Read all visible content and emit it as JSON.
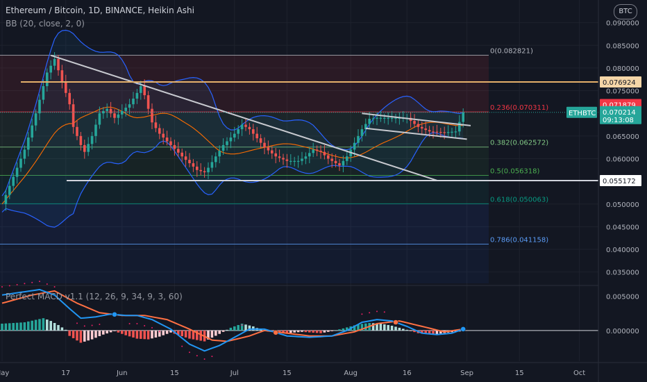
{
  "header": {
    "title": "Ethereum / Bitcoin, 1D, BINANCE, Heikin Ashi",
    "indicator": "BB (20, close, 2, 0)",
    "macd_label": "Perfect MACD v1.1 (12, 26, 9, 34, 9, 3, 60)",
    "currency_button": "BTC"
  },
  "colors": {
    "background": "#131722",
    "up": "#26a69a",
    "down": "#ef5350",
    "bb_band": "#2962ff",
    "bb_basis": "#ff6d00",
    "trendline": "#c8cad0",
    "horizontal_orange": "#e5b06b",
    "macd_line": "#2196f3",
    "signal_line": "#ff7043"
  },
  "chart_data": {
    "type": "candlestick",
    "symbol": "ETHBTC",
    "y_ticks": [
      0.09,
      0.085,
      0.08,
      0.075,
      0.065,
      0.06,
      0.05,
      0.045,
      0.04,
      0.035
    ],
    "y_tick_labels": [
      "0.090000",
      "0.085000",
      "0.080000",
      "0.075000",
      "0.065000",
      "0.060000",
      "0.050000",
      "0.045000",
      "0.040000",
      "0.035000"
    ],
    "ylim": [
      0.0325,
      0.095
    ],
    "x_labels": [
      {
        "label": "May",
        "day": 0
      },
      {
        "label": "17",
        "day": 17
      },
      {
        "label": "Jun",
        "day": 32
      },
      {
        "label": "15",
        "day": 46
      },
      {
        "label": "Jul",
        "day": 62
      },
      {
        "label": "15",
        "day": 76
      },
      {
        "label": "Aug",
        "day": 93
      },
      {
        "label": "16",
        "day": 108
      },
      {
        "label": "Sep",
        "day": 124
      },
      {
        "label": "15",
        "day": 138
      },
      {
        "label": "Oct",
        "day": 154
      }
    ],
    "close_anchors": [
      [
        0,
        0.05
      ],
      [
        3,
        0.056
      ],
      [
        6,
        0.062
      ],
      [
        9,
        0.07
      ],
      [
        12,
        0.079
      ],
      [
        14,
        0.082
      ],
      [
        15,
        0.0795
      ],
      [
        16,
        0.077
      ],
      [
        18,
        0.072
      ],
      [
        19,
        0.067
      ],
      [
        21,
        0.063
      ],
      [
        22,
        0.0615
      ],
      [
        24,
        0.065
      ],
      [
        26,
        0.07
      ],
      [
        28,
        0.071
      ],
      [
        30,
        0.069
      ],
      [
        32,
        0.0705
      ],
      [
        34,
        0.072
      ],
      [
        36,
        0.0745
      ],
      [
        37,
        0.076
      ],
      [
        38,
        0.074
      ],
      [
        39,
        0.071
      ],
      [
        40,
        0.068
      ],
      [
        42,
        0.0655
      ],
      [
        45,
        0.063
      ],
      [
        48,
        0.0605
      ],
      [
        50,
        0.059
      ],
      [
        52,
        0.0575
      ],
      [
        54,
        0.057
      ],
      [
        55,
        0.058
      ],
      [
        57,
        0.0605
      ],
      [
        59,
        0.063
      ],
      [
        62,
        0.0655
      ],
      [
        64,
        0.0675
      ],
      [
        66,
        0.0665
      ],
      [
        68,
        0.0645
      ],
      [
        70,
        0.0625
      ],
      [
        73,
        0.0605
      ],
      [
        76,
        0.0595
      ],
      [
        79,
        0.0595
      ],
      [
        81,
        0.0605
      ],
      [
        83,
        0.062
      ],
      [
        85,
        0.0615
      ],
      [
        87,
        0.06
      ],
      [
        89,
        0.059
      ],
      [
        90,
        0.0585
      ],
      [
        92,
        0.0605
      ],
      [
        94,
        0.0635
      ],
      [
        96,
        0.0665
      ],
      [
        98,
        0.0688
      ],
      [
        100,
        0.069
      ],
      [
        104,
        0.069
      ],
      [
        108,
        0.069
      ],
      [
        111,
        0.067
      ],
      [
        114,
        0.066
      ],
      [
        118,
        0.0658
      ],
      [
        121,
        0.066
      ],
      [
        123,
        0.0702
      ]
    ],
    "macd_ylim": [
      -0.0045,
      0.0065
    ],
    "macd_ticks": [
      0.005,
      0.0
    ],
    "macd_tick_labels": [
      "0.005000",
      "0.000000"
    ],
    "macd_hist_anchors": [
      [
        0,
        0.001
      ],
      [
        6,
        0.0012
      ],
      [
        11,
        0.0018
      ],
      [
        13,
        0.0014
      ],
      [
        15,
        0.0008
      ],
      [
        17,
        0.0001
      ],
      [
        18,
        -0.0008
      ],
      [
        21,
        -0.0018
      ],
      [
        24,
        -0.0013
      ],
      [
        27,
        -0.0006
      ],
      [
        30,
        -0.0001
      ],
      [
        33,
        -0.0007
      ],
      [
        36,
        -0.0012
      ],
      [
        39,
        -0.0013
      ],
      [
        42,
        -0.0009
      ],
      [
        45,
        -0.0003
      ],
      [
        50,
        -0.0012
      ],
      [
        54,
        -0.0016
      ],
      [
        58,
        -0.0005
      ],
      [
        61,
        0.0004
      ],
      [
        64,
        0.001
      ],
      [
        67,
        0.0006
      ],
      [
        70,
        -0.0001
      ],
      [
        76,
        -0.0004
      ],
      [
        80,
        -0.0002
      ],
      [
        85,
        -0.0004
      ],
      [
        88,
        -0.0001
      ],
      [
        91,
        0.0003
      ],
      [
        95,
        0.0009
      ],
      [
        98,
        0.0011
      ],
      [
        101,
        0.001
      ],
      [
        104,
        0.0007
      ],
      [
        108,
        0.0001
      ],
      [
        111,
        -0.0004
      ],
      [
        115,
        -0.0006
      ],
      [
        119,
        -0.0003
      ],
      [
        123,
        -0.0001
      ]
    ],
    "macd_line_anchors": [
      [
        0,
        0.0052
      ],
      [
        10,
        0.006
      ],
      [
        14,
        0.0052
      ],
      [
        18,
        0.0032
      ],
      [
        21,
        0.0018
      ],
      [
        25,
        0.002
      ],
      [
        29,
        0.0024
      ],
      [
        33,
        0.0022
      ],
      [
        36,
        0.0022
      ],
      [
        40,
        0.0016
      ],
      [
        45,
        0.0002
      ],
      [
        50,
        -0.002
      ],
      [
        54,
        -0.003
      ],
      [
        58,
        -0.0022
      ],
      [
        62,
        -0.001
      ],
      [
        66,
        0.0002
      ],
      [
        70,
        0.0002
      ],
      [
        76,
        -0.0008
      ],
      [
        82,
        -0.001
      ],
      [
        88,
        -0.0008
      ],
      [
        92,
        0.0
      ],
      [
        96,
        0.0012
      ],
      [
        100,
        0.0016
      ],
      [
        104,
        0.0014
      ],
      [
        108,
        0.0006
      ],
      [
        112,
        -0.0004
      ],
      [
        116,
        -0.0006
      ],
      [
        120,
        -0.0004
      ],
      [
        123,
        0.0002
      ]
    ],
    "signal_line_anchors": [
      [
        0,
        0.004
      ],
      [
        8,
        0.0052
      ],
      [
        14,
        0.0058
      ],
      [
        20,
        0.004
      ],
      [
        26,
        0.0026
      ],
      [
        32,
        0.0022
      ],
      [
        38,
        0.0022
      ],
      [
        44,
        0.0016
      ],
      [
        50,
        0.0002
      ],
      [
        56,
        -0.0014
      ],
      [
        60,
        -0.0016
      ],
      [
        66,
        -0.0008
      ],
      [
        70,
        0.0
      ],
      [
        76,
        -0.0004
      ],
      [
        82,
        -0.0008
      ],
      [
        88,
        -0.0008
      ],
      [
        94,
        -0.0002
      ],
      [
        100,
        0.001
      ],
      [
        106,
        0.0014
      ],
      [
        112,
        0.0006
      ],
      [
        118,
        -0.0002
      ],
      [
        123,
        0.0002
      ]
    ],
    "fib_levels": [
      {
        "label": "0(0.082821)",
        "value": 0.082821,
        "color": "#b2b5be"
      },
      {
        "label": "0.236(0.070311)",
        "value": 0.070311,
        "color": "#f23645"
      },
      {
        "label": "0.382(0.062572)",
        "value": 0.062572,
        "color": "#81c784"
      },
      {
        "label": "0.5(0.056318)",
        "value": 0.056318,
        "color": "#4caf50"
      },
      {
        "label": "0.618(0.050063)",
        "value": 0.050063,
        "color": "#089981"
      },
      {
        "label": "0.786(0.041158)",
        "value": 0.041158,
        "color": "#5b9cf6"
      }
    ],
    "horizontal_lines": [
      {
        "value": 0.076924,
        "label": "0.076924"
      },
      {
        "value": 0.055172,
        "label": "0.055172"
      }
    ],
    "price_badges": {
      "high": "0.071879",
      "symbol": "ETHBTC",
      "last": "0.070214",
      "countdown": "09:13:08"
    }
  }
}
